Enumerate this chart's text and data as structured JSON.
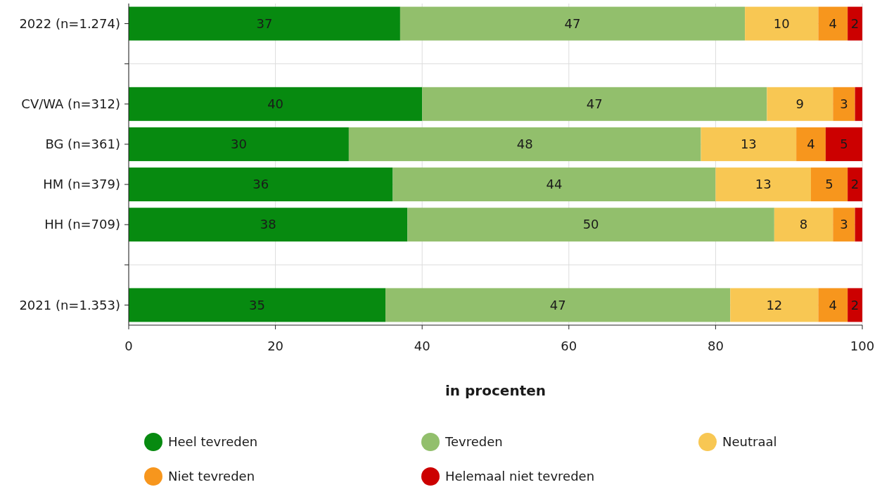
{
  "chart_data": {
    "type": "bar",
    "orientation": "horizontal",
    "stacked": true,
    "categories": [
      "2022 (n=1.274)",
      null,
      "CV/WA (n=312)",
      "BG (n=361)",
      "HM (n=379)",
      "HH (n=709)",
      null,
      "2021 (n=1.353)"
    ],
    "series": [
      {
        "name": "Heel tevreden",
        "color": "#078a10",
        "values": [
          37,
          null,
          40,
          30,
          36,
          38,
          null,
          35
        ],
        "value_labels": [
          "37",
          null,
          "40",
          "30",
          "36",
          "38",
          null,
          "35"
        ]
      },
      {
        "name": "Tevreden",
        "color": "#92bf6c",
        "values": [
          47,
          null,
          47,
          48,
          44,
          50,
          null,
          47
        ],
        "value_labels": [
          "47",
          null,
          "47",
          "48",
          "44",
          "50",
          null,
          "47"
        ]
      },
      {
        "name": "Neutraal",
        "color": "#f8c753",
        "values": [
          10,
          null,
          9,
          13,
          13,
          8,
          null,
          12
        ],
        "value_labels": [
          "10",
          null,
          "9",
          "13",
          "13",
          "8",
          null,
          "12"
        ]
      },
      {
        "name": "Niet tevreden",
        "color": "#f7961d",
        "values": [
          4,
          null,
          3,
          4,
          5,
          3,
          null,
          4
        ],
        "value_labels": [
          "4",
          null,
          "3",
          "4",
          "5",
          "3",
          null,
          "4"
        ]
      },
      {
        "name": "Helemaal niet tevreden",
        "color": "#cc0000",
        "values": [
          2,
          null,
          1,
          5,
          2,
          1,
          null,
          2
        ],
        "value_labels": [
          "2",
          null,
          null,
          "5",
          "2",
          null,
          null,
          "2"
        ]
      }
    ],
    "xlim": [
      0,
      100
    ],
    "xticks": [
      0,
      20,
      40,
      60,
      80,
      100
    ],
    "xlabel": "in procenten",
    "grid": true,
    "legend": "bottom"
  }
}
